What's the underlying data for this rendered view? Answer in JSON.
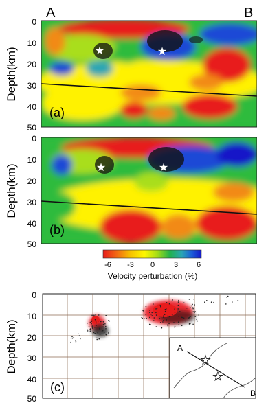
{
  "figure": {
    "corner_left": "A",
    "corner_right": "B"
  },
  "depth_axis": {
    "label": "Depth(km)",
    "ticks": [
      "0",
      "10",
      "20",
      "30",
      "40",
      "50"
    ]
  },
  "chart_data": [
    {
      "panel": "(a)",
      "type": "heatmap",
      "ylabel": "Depth(km)",
      "ylim": [
        50,
        0
      ],
      "ticks": [
        0,
        10,
        20,
        30,
        40,
        50
      ],
      "stars_depth_km": [
        14,
        14
      ],
      "moho_line_depth_km": [
        30,
        36
      ]
    },
    {
      "panel": "(b)",
      "type": "heatmap",
      "ylabel": "Depth(km)",
      "ylim": [
        50,
        0
      ],
      "ticks": [
        0,
        10,
        20,
        30,
        40,
        50
      ],
      "stars_depth_km": [
        14,
        14
      ],
      "moho_line_depth_km": [
        30,
        36
      ]
    },
    {
      "panel": "(c)",
      "type": "scatter",
      "ylabel": "Depth(km)",
      "ylim": [
        50,
        0
      ],
      "ticks": [
        0,
        10,
        20,
        30,
        40,
        50
      ],
      "clusters": [
        {
          "depth_range_km": [
            10,
            20
          ]
        },
        {
          "depth_range_km": [
            5,
            17
          ]
        }
      ],
      "inset": {
        "label_start": "A",
        "label_end": "B",
        "stars": 2
      }
    }
  ],
  "colorbar": {
    "label": "Velocity perturbation (%)",
    "ticks": [
      "-6",
      "-3",
      "0",
      "3",
      "6"
    ],
    "colors": [
      "#e81c1c",
      "#f26a14",
      "#f7c200",
      "#fff700",
      "#a6dd16",
      "#22b24c",
      "#2aa6b4",
      "#1c5fd8",
      "#1417c8"
    ]
  },
  "colors": {
    "panel_border": "#222222",
    "red": "#e81c1c",
    "orange": "#f28a14",
    "yellow": "#f8f000",
    "green": "#2dbb3c",
    "blue": "#1c4ad6",
    "grid": "#8b6a52"
  }
}
